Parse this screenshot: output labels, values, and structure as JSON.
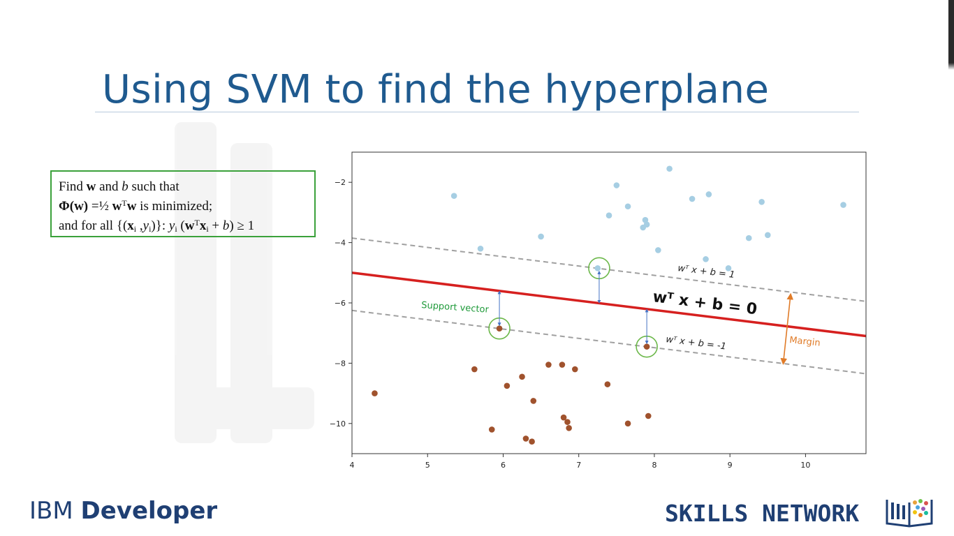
{
  "slide": {
    "title": "Using SVM to find the hyperplane",
    "formula": {
      "line1": {
        "t1": "Find ",
        "w": "w",
        "t2": " and ",
        "b": "b",
        "t3": " such that"
      },
      "line2": {
        "phi": "Φ(w)",
        "eq": " =½ ",
        "w": "w",
        "sup": "T",
        "w2": "w",
        "rest": "  is minimized;"
      },
      "line3": {
        "t1": "and for all {(",
        "x": "x",
        "sub_i": "i",
        "mid": " ,",
        "y": "y",
        "sub_i2": "i",
        "t2": ")}:  ",
        "y2": "y",
        "sub_i3": "i",
        "t3": " (",
        "w": "w",
        "sup": "T",
        "x2": "x",
        "sub_i4": "i",
        "t4": " + ",
        "b": "b",
        "t5": ") ≥ 1"
      }
    }
  },
  "branding": {
    "left_1": "IBM ",
    "left_2": "Developer",
    "right": "SKILLS NETWORK"
  },
  "chart_data": {
    "type": "scatter",
    "xlim": [
      4,
      10.8
    ],
    "ylim": [
      -11,
      -1
    ],
    "xticks": [
      4,
      5,
      6,
      7,
      8,
      9,
      10
    ],
    "yticks": [
      -2,
      -4,
      -6,
      -8,
      -10
    ],
    "grid": false,
    "series": [
      {
        "color": "#a6cee3",
        "points": [
          [
            5.35,
            -2.45
          ],
          [
            5.7,
            -4.2
          ],
          [
            6.5,
            -3.8
          ],
          [
            7.25,
            -4.85
          ],
          [
            7.4,
            -3.1
          ],
          [
            7.5,
            -2.1
          ],
          [
            7.65,
            -2.8
          ],
          [
            7.85,
            -3.5
          ],
          [
            7.88,
            -3.25
          ],
          [
            7.9,
            -3.4
          ],
          [
            8.05,
            -4.25
          ],
          [
            8.2,
            -1.55
          ],
          [
            8.5,
            -2.55
          ],
          [
            8.68,
            -4.55
          ],
          [
            8.72,
            -2.4
          ],
          [
            8.98,
            -4.85
          ],
          [
            9.25,
            -3.85
          ],
          [
            9.42,
            -2.65
          ],
          [
            9.5,
            -3.75
          ],
          [
            10.5,
            -2.75
          ]
        ]
      },
      {
        "color": "#a0522d",
        "points": [
          [
            4.3,
            -9.0
          ],
          [
            5.62,
            -8.2
          ],
          [
            5.85,
            -10.2
          ],
          [
            5.95,
            -6.85
          ],
          [
            6.05,
            -8.75
          ],
          [
            6.25,
            -8.45
          ],
          [
            6.3,
            -10.5
          ],
          [
            6.38,
            -10.6
          ],
          [
            6.4,
            -9.25
          ],
          [
            6.6,
            -8.05
          ],
          [
            6.78,
            -8.05
          ],
          [
            6.8,
            -9.8
          ],
          [
            6.85,
            -9.95
          ],
          [
            6.87,
            -10.15
          ],
          [
            6.95,
            -8.2
          ],
          [
            7.38,
            -8.7
          ],
          [
            7.65,
            -10.0
          ],
          [
            7.9,
            -7.45
          ],
          [
            7.92,
            -9.75
          ]
        ]
      }
    ],
    "lines": [
      {
        "role": "hyperplane",
        "color": "#d6201f",
        "x": [
          4,
          10.8
        ],
        "y": [
          -5.0,
          -7.1
        ]
      },
      {
        "role": "margin",
        "color": "#a0a0a0",
        "x": [
          4,
          10.8
        ],
        "y": [
          -3.85,
          -5.95
        ]
      },
      {
        "role": "margin",
        "color": "#a0a0a0",
        "x": [
          4,
          10.8
        ],
        "y": [
          -6.25,
          -8.35
        ]
      }
    ],
    "support_vectors": [
      [
        7.27,
        -4.85
      ],
      [
        5.95,
        -6.85
      ],
      [
        7.9,
        -7.45
      ]
    ],
    "annotations": {
      "upper_margin": "wᵀ x + b = 1",
      "hyperplane": "wᵀ x + b = 0",
      "lower_margin": "wᵀ x + b = -1",
      "support_vector": "Support vector",
      "margin": "Margin"
    },
    "colors": {
      "axis": "#333333",
      "annotation_green": "#1f9a3a",
      "margin_arrow": "#e07b28",
      "sv_arrow": "#4472c4"
    }
  }
}
